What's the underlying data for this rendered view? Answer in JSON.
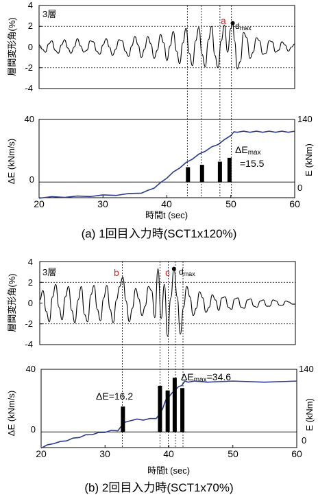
{
  "chart_data": [
    {
      "type": "line",
      "panel": "a",
      "caption": "(a) 1回目入力時(SCT1x120%)",
      "drift": {
        "ylabel": "層間変形角(%)",
        "floor_label": "3層",
        "ylim": [
          -4,
          4
        ],
        "yticks": [
          "4",
          "2",
          "0",
          "-2",
          "-4"
        ],
        "dashed_y": [
          2,
          -2
        ],
        "marker_letter": "a",
        "marker_label": "dmax",
        "dmax_t": 50.3,
        "dmax_value": 2.3,
        "series": [
          {
            "name": "drift",
            "t": [
              20.0,
              20.5,
              21.0,
              21.5,
              22.0,
              22.5,
              23.0,
              23.5,
              24.0,
              24.5,
              25.0,
              25.5,
              26.0,
              26.5,
              27.0,
              27.5,
              28.0,
              28.5,
              29.0,
              29.5,
              30.0,
              30.5,
              31.0,
              31.5,
              32.0,
              32.5,
              33.0,
              33.5,
              34.0,
              34.5,
              35.0,
              35.5,
              36.0,
              36.5,
              37.0,
              37.5,
              38.0,
              38.5,
              39.0,
              39.5,
              40.0,
              40.5,
              41.0,
              41.5,
              42.0,
              42.5,
              43.0,
              43.5,
              44.0,
              44.5,
              45.0,
              45.5,
              46.0,
              46.5,
              47.0,
              47.5,
              48.0,
              48.5,
              49.0,
              49.5,
              50.0,
              50.3,
              50.6,
              51.0,
              51.5,
              52.0,
              52.5,
              53.0,
              53.5,
              54.0,
              54.5,
              55.0,
              55.5,
              56.0,
              56.5,
              57.0,
              57.5,
              58.0,
              58.5,
              59.0,
              59.5,
              60.0
            ],
            "values": [
              0.2,
              -0.2,
              -0.5,
              0.3,
              0.6,
              -0.3,
              -0.6,
              0.2,
              0.7,
              -0.1,
              -0.6,
              0.0,
              0.8,
              0.1,
              -0.5,
              -0.3,
              0.6,
              0.5,
              -0.4,
              -0.7,
              0.2,
              0.8,
              0.0,
              -0.8,
              -0.2,
              0.7,
              0.6,
              -0.4,
              -0.9,
              0.1,
              1.0,
              0.2,
              -1.0,
              -0.2,
              1.0,
              0.3,
              -1.1,
              -0.3,
              1.2,
              0.4,
              -1.3,
              0.1,
              1.5,
              -0.4,
              -1.6,
              0.4,
              1.8,
              -0.6,
              -1.8,
              0.6,
              1.9,
              -0.7,
              -1.9,
              0.7,
              2.0,
              -0.8,
              -2.0,
              0.6,
              2.1,
              -0.5,
              1.8,
              2.3,
              0.6,
              -2.1,
              -1.4,
              1.4,
              0.9,
              -1.1,
              -0.5,
              0.9,
              0.6,
              -0.7,
              -0.6,
              0.6,
              0.5,
              -0.5,
              -0.3,
              0.5,
              0.2,
              -0.4,
              0.0,
              0.3
            ]
          }
        ]
      },
      "energy": {
        "ylabel_left": "ΔE (kNm/s)",
        "ylabel_right": "E (kNm)",
        "xlabel": "時間t (sec)",
        "xlim": [
          20,
          60
        ],
        "xticks": [
          "20",
          "30",
          "40",
          "50",
          "60"
        ],
        "ylim_left": [
          -10,
          40
        ],
        "yticks_left": [
          "40",
          "0"
        ],
        "ylim_right": [
          0,
          140
        ],
        "yticks_right": [
          "140",
          "0"
        ],
        "dashed_x": [
          43.2,
          45.4,
          48.3,
          50.1
        ],
        "bars": [
          {
            "t": 43.3,
            "value": 9.5
          },
          {
            "t": 45.5,
            "value": 11.0
          },
          {
            "t": 48.3,
            "value": 13.0
          },
          {
            "t": 49.8,
            "value": 15.5
          }
        ],
        "annotation_head": "ΔE",
        "annotation_sub": "max",
        "annotation_value": "=15.5",
        "cumulative": {
          "name": "E",
          "t": [
            20,
            22,
            24,
            26,
            28,
            30,
            32,
            34,
            36,
            37,
            38,
            39,
            40,
            41,
            42,
            43,
            44,
            45,
            46,
            47,
            48,
            49,
            50,
            50.5,
            51,
            52,
            53,
            54,
            55,
            56,
            57,
            58,
            59,
            60
          ],
          "values": [
            0,
            1,
            1.5,
            2,
            3,
            4,
            5,
            6.5,
            9,
            12,
            18,
            26,
            36,
            45,
            54,
            62,
            70,
            77,
            84,
            90,
            96,
            103,
            112,
            117,
            118,
            118,
            118,
            118,
            118,
            118,
            118,
            118,
            118,
            118
          ]
        }
      }
    },
    {
      "type": "line",
      "panel": "b",
      "caption": "(b) 2回目入力時(SCT1x70%)",
      "drift": {
        "ylabel": "層間変形角(%)",
        "floor_label": "3層",
        "ylim": [
          -4,
          4
        ],
        "yticks": [
          "4",
          "2",
          "0",
          "-2",
          "-4"
        ],
        "dashed_y": [
          2,
          -2
        ],
        "marker_letter_b": "b",
        "marker_letter_c": "c",
        "marker_label": "dmax",
        "dmax_t": 41.0,
        "dmax_value": 3.3,
        "series": [
          {
            "name": "drift",
            "t": [
              20.0,
              20.5,
              21.0,
              21.5,
              22.0,
              22.5,
              23.0,
              23.5,
              24.0,
              24.5,
              25.0,
              25.5,
              26.0,
              26.5,
              27.0,
              27.5,
              28.0,
              28.5,
              29.0,
              29.5,
              30.0,
              30.5,
              31.0,
              31.5,
              32.0,
              32.5,
              33.0,
              33.5,
              34.0,
              34.5,
              35.0,
              35.5,
              36.0,
              36.5,
              37.0,
              37.5,
              38.0,
              38.5,
              39.0,
              39.5,
              40.0,
              40.5,
              41.0,
              41.5,
              42.0,
              42.5,
              43.0,
              43.5,
              44.0,
              44.5,
              45.0,
              45.5,
              46.0,
              46.5,
              47.0,
              47.5,
              48.0,
              48.5,
              49.0,
              49.5,
              50.0,
              50.5,
              51.0,
              51.5,
              52.0,
              52.5,
              53.0,
              53.5,
              54.0,
              54.5,
              55.0,
              55.5,
              56.0,
              56.5,
              57.0,
              57.5,
              58.0,
              58.5,
              59.0,
              59.5,
              60.0
            ],
            "values": [
              0.3,
              1.2,
              -0.8,
              -1.8,
              0.6,
              1.8,
              -0.4,
              -1.6,
              0.6,
              1.6,
              -0.7,
              -1.9,
              0.3,
              1.6,
              -1.1,
              -1.8,
              0.8,
              1.7,
              -0.6,
              -1.7,
              0.5,
              1.7,
              -0.6,
              -1.9,
              0.3,
              1.6,
              2.5,
              0.2,
              -1.8,
              -0.5,
              1.4,
              0.4,
              -1.2,
              -0.3,
              1.6,
              1.2,
              -1.4,
              3.3,
              -1.5,
              1.8,
              -3.2,
              0.5,
              3.3,
              0.6,
              -3.0,
              -0.4,
              1.6,
              0.6,
              -1.2,
              -0.5,
              1.1,
              0.5,
              -0.9,
              -0.4,
              0.8,
              0.3,
              -0.7,
              0.5,
              0.6,
              -0.4,
              -0.6,
              0.4,
              0.5,
              -0.4,
              -0.5,
              0.3,
              0.4,
              -0.3,
              -0.4,
              0.2,
              0.3,
              -0.3,
              -0.3,
              0.3,
              0.2,
              -0.2,
              -0.2,
              0.2,
              0.1,
              -0.1,
              -0.1
            ]
          }
        ]
      },
      "energy": {
        "ylabel_left": "ΔE (kNm/s)",
        "ylabel_right": "E (kNm)",
        "xlabel": "時間t (sec)",
        "xlim": [
          20,
          60
        ],
        "xticks": [
          "20",
          "30",
          "40",
          "50",
          "60"
        ],
        "ylim_left": [
          -10,
          40
        ],
        "yticks_left": [
          "40",
          "0"
        ],
        "ylim_right": [
          0,
          140
        ],
        "yticks_right": [
          "140",
          "0"
        ],
        "dashed_x": [
          32.7,
          38.6,
          39.9,
          41.0,
          42.2
        ],
        "bars": [
          {
            "t": 32.8,
            "value": 16.2
          },
          {
            "t": 38.6,
            "value": 29.5
          },
          {
            "t": 39.8,
            "value": 26.5
          },
          {
            "t": 40.9,
            "value": 34.6
          },
          {
            "t": 42.1,
            "value": 28.0
          }
        ],
        "annotation_left": "ΔE=16.2",
        "annotation_head": "ΔE",
        "annotation_sub": "max",
        "annotation_value": "=34.6",
        "cumulative": {
          "name": "E",
          "t": [
            20,
            21,
            22,
            23,
            24,
            25,
            26,
            27,
            28,
            29,
            30,
            31,
            32,
            33,
            34,
            35,
            36,
            37,
            38,
            38.5,
            39,
            39.5,
            40,
            40.5,
            41,
            41.5,
            42,
            42.5,
            43,
            44,
            46,
            50,
            55,
            60
          ],
          "values": [
            0,
            4,
            8,
            10,
            13,
            16,
            19,
            22,
            24,
            26,
            28,
            30,
            31,
            44,
            49,
            50,
            50,
            51,
            53,
            58,
            70,
            84,
            92,
            97,
            104,
            108,
            112,
            118,
            118,
            118,
            118,
            118,
            118,
            118
          ]
        }
      }
    }
  ]
}
